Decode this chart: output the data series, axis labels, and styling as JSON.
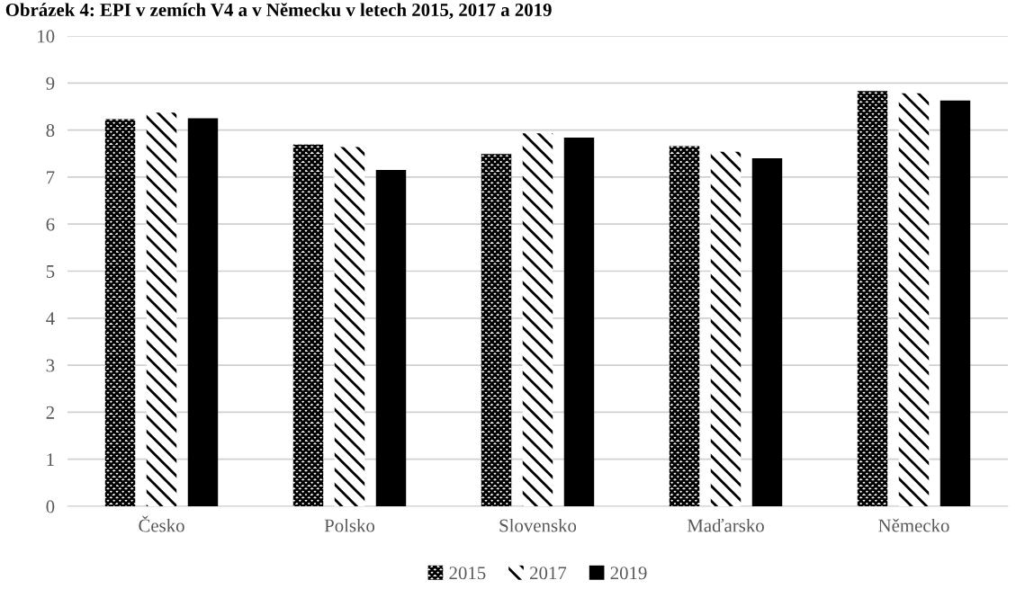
{
  "chart_data": {
    "type": "bar",
    "title": "Obrázek 4: EPI v zemích V4 a v Německu v letech 2015, 2017 a 2019",
    "categories": [
      "Česko",
      "Polsko",
      "Slovensko",
      "Maďarsko",
      "Německo"
    ],
    "series": [
      {
        "name": "2015",
        "color": "#000000",
        "values": [
          8.23,
          7.69,
          7.49,
          7.66,
          8.83
        ]
      },
      {
        "name": "2017",
        "color": "#000000",
        "values": [
          8.37,
          7.64,
          7.93,
          7.54,
          8.78
        ]
      },
      {
        "name": "2019",
        "color": "#000000",
        "values": [
          8.25,
          7.15,
          7.84,
          7.4,
          8.63
        ]
      }
    ],
    "ylim": [
      0,
      10
    ],
    "yticks": [
      0,
      1,
      2,
      3,
      4,
      5,
      6,
      7,
      8,
      9,
      10
    ],
    "grid": "y",
    "legend": "bottom"
  }
}
